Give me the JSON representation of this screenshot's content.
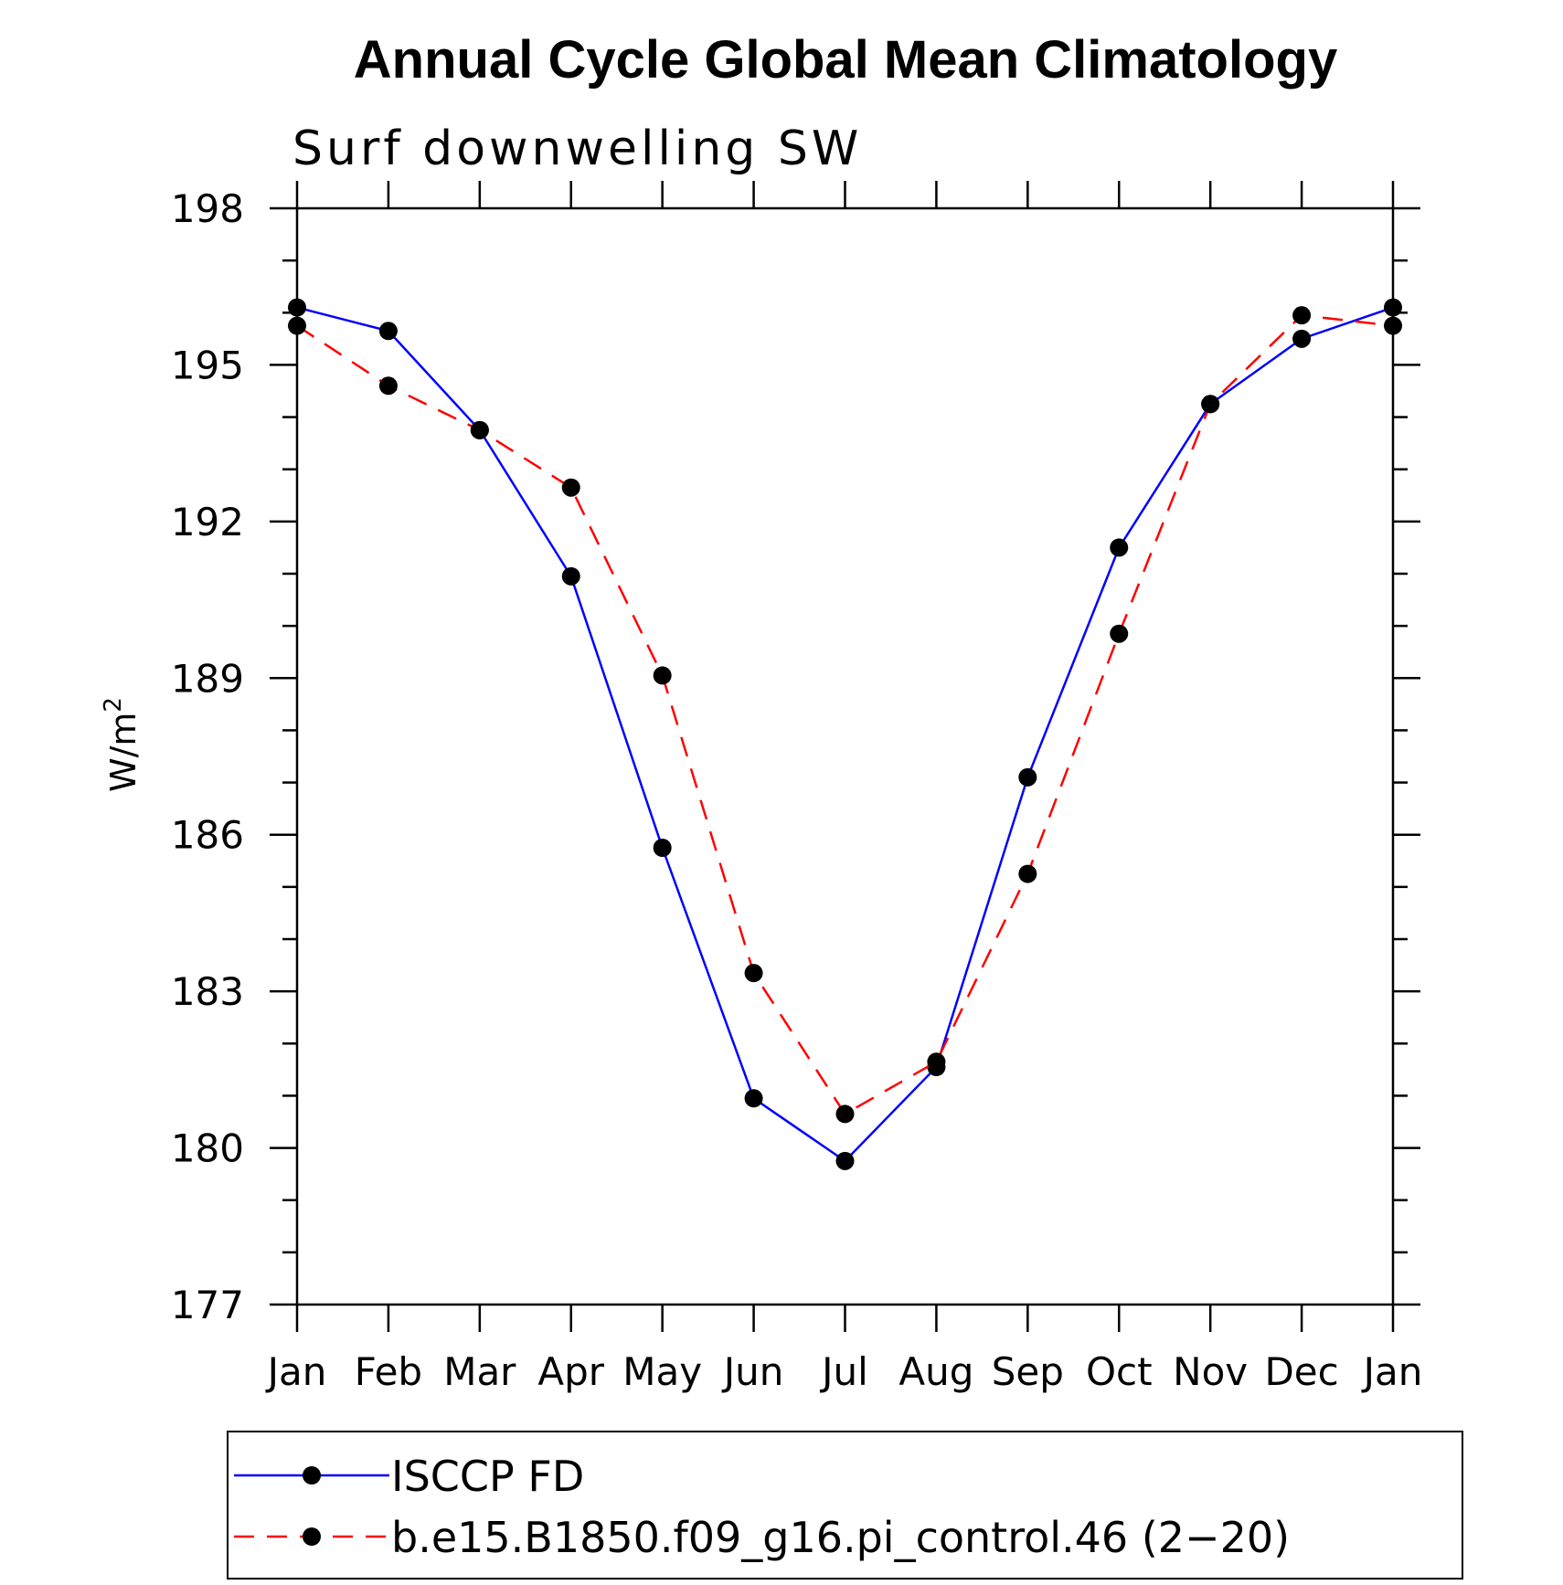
{
  "chart_data": {
    "type": "line",
    "title": "Annual Cycle Global Mean Climatology",
    "subtitle": "Surf downwelling SW",
    "ylabel": "W/m",
    "ylabel_sup": "2",
    "categories": [
      "Jan",
      "Feb",
      "Mar",
      "Apr",
      "May",
      "Jun",
      "Jul",
      "Aug",
      "Sep",
      "Oct",
      "Nov",
      "Dec",
      "Jan"
    ],
    "ylim": [
      177,
      198
    ],
    "yticks": [
      177,
      180,
      183,
      186,
      189,
      192,
      195,
      198
    ],
    "yticklabels": [
      "177",
      "180",
      "183",
      "186",
      "189",
      "192",
      "195",
      "198"
    ],
    "legend_position": "bottom",
    "series": [
      {
        "name": "ISCCP FD",
        "color": "#0000ff",
        "dash": "solid",
        "marker": "filled-circle",
        "values": [
          196.1,
          195.65,
          193.75,
          190.95,
          185.75,
          180.95,
          179.75,
          181.55,
          187.1,
          191.5,
          194.25,
          195.5,
          196.1
        ]
      },
      {
        "name": "b.e15.B1850.f09_g16.pi_control.46 (2−20)",
        "color": "#ff0000",
        "dash": "dashed",
        "marker": "filled-circle",
        "values": [
          195.75,
          194.6,
          193.75,
          192.65,
          189.05,
          183.35,
          180.65,
          181.65,
          185.25,
          189.85,
          194.25,
          195.95,
          195.75
        ]
      }
    ]
  }
}
